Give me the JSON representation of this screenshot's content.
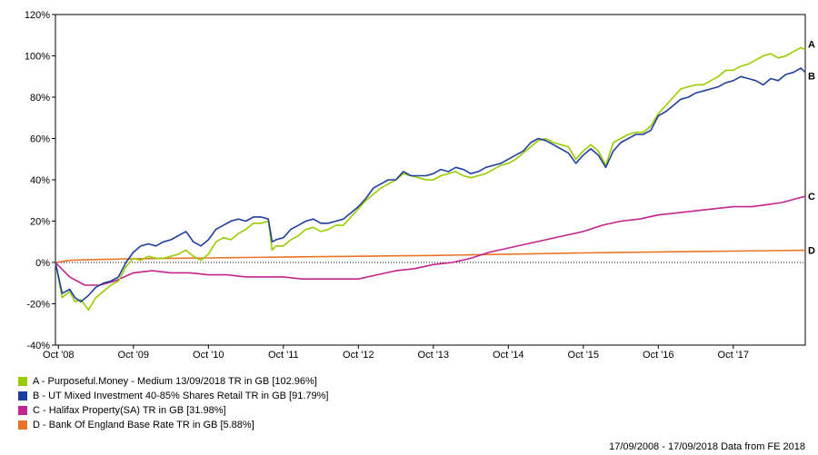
{
  "chart_data": {
    "type": "line",
    "ylim": [
      -40,
      120
    ],
    "yticks": [
      -40,
      -20,
      0,
      20,
      40,
      60,
      80,
      100,
      120
    ],
    "ytick_labels": [
      "-40%",
      "-20%",
      "0%",
      "20%",
      "40%",
      "60%",
      "80%",
      "100%",
      "120%"
    ],
    "xlim": [
      2008.71,
      2018.71
    ],
    "xticks": [
      2008.75,
      2009.75,
      2010.75,
      2011.75,
      2012.75,
      2013.75,
      2014.75,
      2015.75,
      2016.75,
      2017.75
    ],
    "xtick_labels": [
      "Oct '08",
      "Oct '09",
      "Oct '10",
      "Oct '11",
      "Oct '12",
      "Oct '13",
      "Oct '14",
      "Oct '15",
      "Oct '16",
      "Oct '17"
    ],
    "grid": false,
    "legend_position": "bottom-left",
    "series": [
      {
        "name": "A - Purposeful.Money - Medium 13/09/2018 TR in GB [102.96%]",
        "end_label": "A",
        "color": "#99cc00",
        "x": [
          2008.71,
          2008.8,
          2008.9,
          2008.97,
          2009.05,
          2009.15,
          2009.25,
          2009.35,
          2009.45,
          2009.55,
          2009.65,
          2009.75,
          2009.85,
          2009.95,
          2010.05,
          2010.15,
          2010.25,
          2010.35,
          2010.45,
          2010.55,
          2010.65,
          2010.75,
          2010.85,
          2010.95,
          2011.05,
          2011.15,
          2011.25,
          2011.35,
          2011.45,
          2011.55,
          2011.6,
          2011.65,
          2011.75,
          2011.85,
          2011.95,
          2012.05,
          2012.15,
          2012.25,
          2012.35,
          2012.45,
          2012.55,
          2012.65,
          2012.75,
          2012.85,
          2012.95,
          2013.05,
          2013.15,
          2013.25,
          2013.35,
          2013.45,
          2013.55,
          2013.65,
          2013.75,
          2013.85,
          2013.95,
          2014.05,
          2014.15,
          2014.25,
          2014.35,
          2014.45,
          2014.55,
          2014.65,
          2014.75,
          2014.85,
          2014.95,
          2015.05,
          2015.15,
          2015.25,
          2015.35,
          2015.45,
          2015.55,
          2015.65,
          2015.75,
          2015.85,
          2015.95,
          2016.05,
          2016.15,
          2016.25,
          2016.35,
          2016.45,
          2016.55,
          2016.65,
          2016.75,
          2016.85,
          2016.95,
          2017.05,
          2017.15,
          2017.25,
          2017.35,
          2017.45,
          2017.55,
          2017.65,
          2017.75,
          2017.85,
          2017.95,
          2018.05,
          2018.15,
          2018.25,
          2018.35,
          2018.45,
          2018.55,
          2018.65,
          2018.71
        ],
        "y": [
          0,
          -17,
          -14,
          -19,
          -18,
          -23,
          -17,
          -14,
          -11,
          -9,
          -2,
          2,
          1,
          3,
          2,
          2,
          3,
          4,
          6,
          3,
          1,
          4,
          10,
          12,
          11,
          14,
          16,
          19,
          19,
          20,
          6,
          8,
          8,
          11,
          13,
          16,
          17,
          15,
          16,
          18,
          18,
          22,
          26,
          30,
          33,
          36,
          38,
          40,
          43,
          42,
          41,
          40,
          40,
          42,
          43,
          44,
          42,
          41,
          42,
          43,
          45,
          47,
          48,
          50,
          53,
          56,
          59,
          60,
          58,
          57,
          56,
          50,
          54,
          57,
          54,
          47,
          58,
          60,
          62,
          63,
          63,
          66,
          72,
          76,
          80,
          84,
          85,
          86,
          86,
          88,
          90,
          93,
          93,
          95,
          96,
          98,
          100,
          101,
          99,
          100,
          102,
          104,
          103
        ]
      },
      {
        "name": "B - UT Mixed Investment 40-85% Shares Retail TR in GB [91.79%]",
        "end_label": "B",
        "color": "#1f3f9c",
        "x": [
          2008.71,
          2008.8,
          2008.9,
          2008.97,
          2009.05,
          2009.15,
          2009.25,
          2009.35,
          2009.45,
          2009.55,
          2009.65,
          2009.75,
          2009.85,
          2009.95,
          2010.05,
          2010.15,
          2010.25,
          2010.35,
          2010.45,
          2010.55,
          2010.65,
          2010.75,
          2010.85,
          2010.95,
          2011.05,
          2011.15,
          2011.25,
          2011.35,
          2011.45,
          2011.55,
          2011.6,
          2011.65,
          2011.75,
          2011.85,
          2011.95,
          2012.05,
          2012.15,
          2012.25,
          2012.35,
          2012.45,
          2012.55,
          2012.65,
          2012.75,
          2012.85,
          2012.95,
          2013.05,
          2013.15,
          2013.25,
          2013.35,
          2013.45,
          2013.55,
          2013.65,
          2013.75,
          2013.85,
          2013.95,
          2014.05,
          2014.15,
          2014.25,
          2014.35,
          2014.45,
          2014.55,
          2014.65,
          2014.75,
          2014.85,
          2014.95,
          2015.05,
          2015.15,
          2015.25,
          2015.35,
          2015.45,
          2015.55,
          2015.65,
          2015.75,
          2015.85,
          2015.95,
          2016.05,
          2016.15,
          2016.25,
          2016.35,
          2016.45,
          2016.55,
          2016.65,
          2016.75,
          2016.85,
          2016.95,
          2017.05,
          2017.15,
          2017.25,
          2017.35,
          2017.45,
          2017.55,
          2017.65,
          2017.75,
          2017.85,
          2017.95,
          2018.05,
          2018.15,
          2018.25,
          2018.35,
          2018.45,
          2018.55,
          2018.65,
          2018.71
        ],
        "y": [
          0,
          -15,
          -13,
          -17,
          -19,
          -16,
          -12,
          -10,
          -9,
          -7,
          0,
          5,
          8,
          9,
          8,
          10,
          11,
          13,
          15,
          10,
          8,
          11,
          16,
          18,
          20,
          21,
          20,
          22,
          22,
          21,
          10,
          11,
          12,
          16,
          18,
          20,
          21,
          19,
          19,
          20,
          21,
          24,
          27,
          31,
          36,
          38,
          40,
          40,
          44,
          42,
          42,
          42,
          43,
          45,
          44,
          46,
          45,
          43,
          44,
          46,
          47,
          48,
          50,
          52,
          54,
          58,
          60,
          59,
          57,
          55,
          53,
          48,
          52,
          55,
          52,
          46,
          54,
          58,
          60,
          62,
          62,
          64,
          71,
          73,
          76,
          79,
          80,
          82,
          83,
          84,
          85,
          87,
          88,
          90,
          89,
          88,
          86,
          89,
          88,
          91,
          92,
          94,
          92
        ]
      },
      {
        "name": "C - Halifax Property(SA) TR in GB [31.98%]",
        "end_label": "C",
        "color": "#c2238c",
        "x": [
          2008.71,
          2008.9,
          2009.1,
          2009.3,
          2009.5,
          2009.75,
          2010.0,
          2010.25,
          2010.5,
          2010.75,
          2011.0,
          2011.25,
          2011.5,
          2011.75,
          2012.0,
          2012.25,
          2012.5,
          2012.75,
          2013.0,
          2013.25,
          2013.5,
          2013.75,
          2014.0,
          2014.25,
          2014.5,
          2014.75,
          2015.0,
          2015.25,
          2015.5,
          2015.75,
          2016.0,
          2016.25,
          2016.5,
          2016.75,
          2017.0,
          2017.25,
          2017.5,
          2017.75,
          2018.0,
          2018.2,
          2018.4,
          2018.6,
          2018.71
        ],
        "y": [
          0,
          -7,
          -11,
          -11,
          -9,
          -5,
          -4,
          -5,
          -5,
          -6,
          -6,
          -7,
          -7,
          -7,
          -8,
          -8,
          -8,
          -8,
          -6,
          -4,
          -3,
          -1,
          0,
          2,
          5,
          7,
          9,
          11,
          13,
          15,
          18,
          20,
          21,
          23,
          24,
          25,
          26,
          27,
          27,
          28,
          29,
          31,
          32
        ]
      },
      {
        "name": "D - Bank Of England Base Rate TR in GB [5.88%]",
        "end_label": "D",
        "color": "#e8742a",
        "x": [
          2008.71,
          2008.8,
          2008.9,
          2009.0,
          2009.2,
          2009.5,
          2009.75,
          2010.25,
          2010.75,
          2011.25,
          2011.75,
          2012.25,
          2012.75,
          2013.25,
          2013.75,
          2014.25,
          2014.75,
          2015.25,
          2015.75,
          2016.25,
          2016.75,
          2017.25,
          2017.75,
          2018.25,
          2018.71
        ],
        "y": [
          0,
          0.5,
          1.0,
          1.2,
          1.4,
          1.6,
          1.8,
          2.0,
          2.2,
          2.4,
          2.6,
          2.8,
          3.0,
          3.2,
          3.4,
          3.7,
          4.0,
          4.3,
          4.6,
          4.9,
          5.1,
          5.3,
          5.5,
          5.7,
          5.88
        ]
      }
    ]
  },
  "footer": "17/09/2008 - 17/09/2018 Data from FE 2018"
}
